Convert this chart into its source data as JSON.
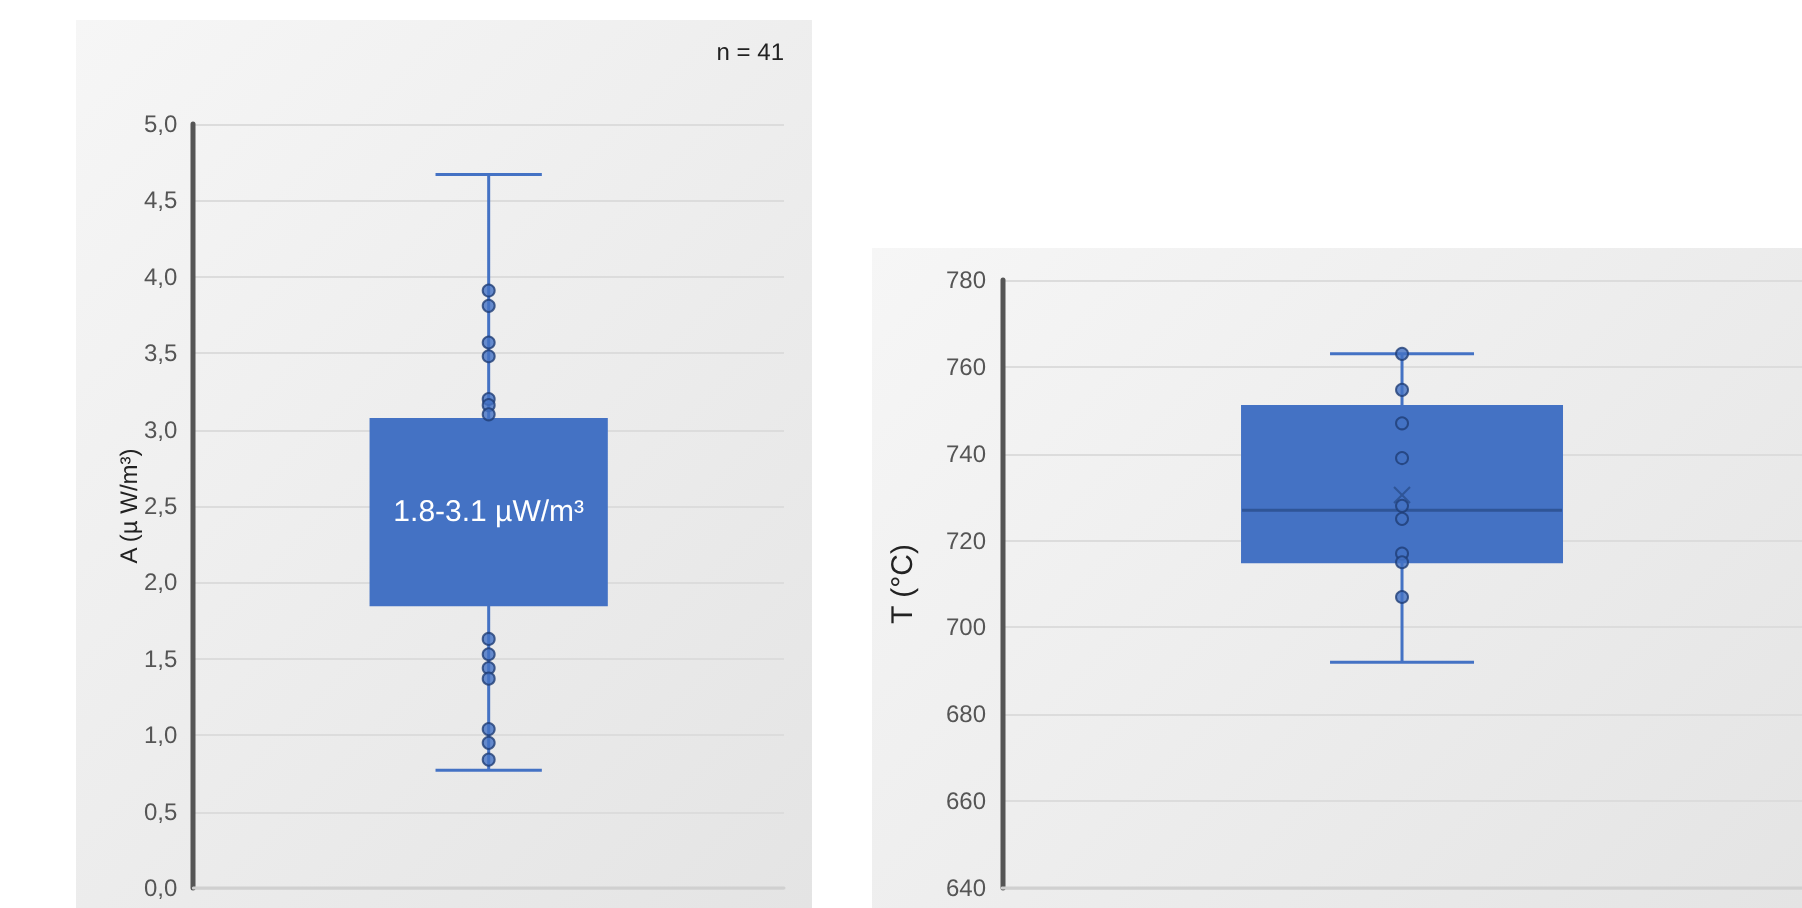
{
  "chart_data": [
    {
      "type": "box",
      "ylabel": "A (µ W/m³)",
      "categories": [
        null
      ],
      "tick_labels": "y",
      "grid": "y",
      "series": [
        {
          "type": "box",
          "color": "#4472c4",
          "boxes": [
            {
              "low": 0.77,
              "q1": 1.85,
              "median": null,
              "q3": 3.07,
              "high": 4.67
            }
          ]
        },
        {
          "type": "scatter",
          "color": "#4472c4",
          "marker": "circle",
          "x": [
            null,
            null,
            null,
            null,
            null,
            null,
            null,
            null,
            null,
            null,
            null,
            null,
            null,
            null
          ],
          "values": [
            3.91,
            3.81,
            3.57,
            3.48,
            3.2,
            3.16,
            3.1,
            1.63,
            1.53,
            1.44,
            1.37,
            1.04,
            0.95,
            0.84
          ]
        }
      ],
      "ylim": [
        0,
        5
      ],
      "yticks": [
        {
          "value": 0,
          "label": "0,0"
        },
        {
          "value": 0.5,
          "label": "0,5"
        },
        {
          "value": 1,
          "label": "1,0"
        },
        {
          "value": 1.5,
          "label": "1,5"
        },
        {
          "value": 2,
          "label": "2,0"
        },
        {
          "value": 2.5,
          "label": "2,5"
        },
        {
          "value": 3,
          "label": "3,0"
        },
        {
          "value": 3.5,
          "label": "3,5"
        },
        {
          "value": 4,
          "label": "4,0"
        },
        {
          "value": 4.5,
          "label": "4,5"
        },
        {
          "value": 5,
          "label": "5,0"
        }
      ],
      "annotations": [
        "n = 41",
        "1.8-3.1 µW/m³"
      ]
    },
    {
      "type": "box",
      "ylabel": "T (°C)",
      "categories": [
        null
      ],
      "tick_labels": "y",
      "grid": "y",
      "series": [
        {
          "type": "box",
          "color": "#4472c4",
          "boxes": [
            {
              "low": 692,
              "q1": 715,
              "median": 727,
              "q3": 751,
              "high": 763,
              "mean": 730.5
            }
          ]
        },
        {
          "type": "scatter",
          "color": "#4472c4",
          "marker": "circle",
          "x": [
            null,
            null,
            null,
            null,
            null,
            null,
            null,
            null,
            null
          ],
          "values": [
            763,
            754.7,
            747,
            739,
            728,
            725,
            717,
            715,
            707
          ]
        }
      ],
      "ylim": [
        640,
        780
      ],
      "yticks": [
        640,
        660,
        680,
        700,
        720,
        740,
        760,
        780
      ]
    }
  ]
}
